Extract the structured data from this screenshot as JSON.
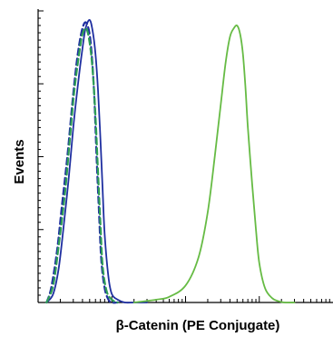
{
  "chart_data": {
    "type": "line",
    "xlabel": "β-Catenin (PE Conjugate)",
    "ylabel": "Events",
    "x_scale": "log",
    "xlim": [
      0.1,
      1000
    ],
    "ylim": [
      0,
      100
    ],
    "grid": false,
    "series": [
      {
        "style": "solid",
        "color": "#1f2fa0",
        "x": [
          0.13,
          0.16,
          0.19,
          0.22,
          0.26,
          0.3,
          0.35,
          0.4,
          0.44,
          0.5,
          0.55,
          0.6,
          0.65,
          0.7,
          0.75,
          0.8,
          0.9,
          1.0,
          1.2,
          1.5,
          2.0,
          3.0
        ],
        "y": [
          0,
          3,
          12,
          26,
          44,
          62,
          78,
          90,
          97,
          100,
          96,
          88,
          75,
          58,
          40,
          24,
          9,
          3,
          1,
          0,
          0,
          0
        ]
      },
      {
        "style": "dashed",
        "color": "#1f2fa0",
        "x": [
          0.13,
          0.15,
          0.18,
          0.21,
          0.25,
          0.29,
          0.33,
          0.37,
          0.41,
          0.45,
          0.5,
          0.54,
          0.58,
          0.62,
          0.67,
          0.72,
          0.8,
          0.9,
          1.0,
          1.2
        ],
        "y": [
          0,
          5,
          18,
          34,
          52,
          70,
          84,
          93,
          98,
          99,
          95,
          86,
          72,
          52,
          32,
          15,
          5,
          1,
          0,
          0
        ]
      },
      {
        "style": "dashed",
        "color": "#2e9e55",
        "x": [
          0.13,
          0.16,
          0.19,
          0.23,
          0.27,
          0.31,
          0.36,
          0.4,
          0.45,
          0.5,
          0.55,
          0.6,
          0.65,
          0.7,
          0.75,
          0.85,
          1.0,
          1.2
        ],
        "y": [
          0,
          6,
          20,
          38,
          58,
          75,
          88,
          95,
          97,
          92,
          82,
          66,
          46,
          28,
          13,
          4,
          1,
          0
        ]
      },
      {
        "style": "solid",
        "color": "#66bb44",
        "x": [
          2,
          4,
          6,
          10,
          15,
          20,
          25,
          30,
          35,
          40,
          45,
          50,
          55,
          60,
          65,
          70,
          80,
          90,
          100,
          120,
          150,
          180,
          220,
          300
        ],
        "y": [
          0,
          1,
          2,
          6,
          16,
          32,
          52,
          70,
          85,
          94,
          97,
          98,
          95,
          88,
          76,
          62,
          42,
          26,
          14,
          5,
          1.5,
          0.5,
          0,
          0
        ]
      }
    ]
  }
}
